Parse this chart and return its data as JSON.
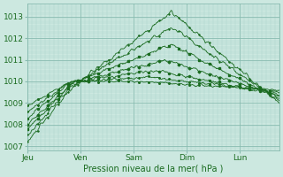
{
  "title": "",
  "xlabel": "Pression niveau de la mer( hPa )",
  "background_color": "#cce8e0",
  "plot_bg_color": "#cce8e0",
  "grid_major_color": "#88bbb0",
  "grid_minor_color": "#aad4cc",
  "line_color": "#1a6b20",
  "ylim": [
    1006.8,
    1013.6
  ],
  "yticks": [
    1007,
    1008,
    1009,
    1010,
    1011,
    1012,
    1013
  ],
  "day_labels": [
    "Jeu",
    "Ven",
    "Sam",
    "Dim",
    "Lun"
  ],
  "day_positions": [
    0,
    24,
    48,
    72,
    96
  ],
  "xlim": [
    0,
    114
  ],
  "total_hours": 114,
  "num_series": 7
}
